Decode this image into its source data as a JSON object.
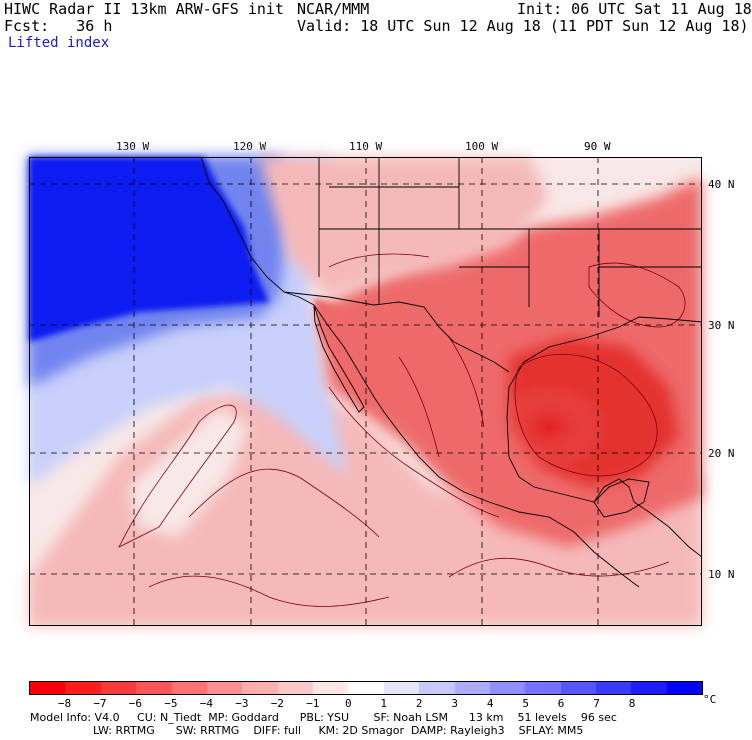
{
  "header": {
    "left_line1": "HIWC Radar II 13km ARW-GFS init",
    "org": "NCAR/MMM",
    "init": "Init: 06 UTC Sat 11 Aug 18",
    "fcst_line": "Fcst:   36 h",
    "valid": "Valid: 18 UTC Sun 12 Aug 18 (11 PDT Sun 12 Aug 18)",
    "field": "Lifted index"
  },
  "map": {
    "lon_labels": [
      "130 W",
      "120 W",
      "110 W",
      "100 W",
      "90 W"
    ],
    "lat_labels": [
      "40 N",
      "30 N",
      "20 N",
      "10 N"
    ],
    "colors": {
      "strong_stable": "#0a1cf0",
      "stable": "#6f83ef",
      "weak_stable": "#c8d0fb",
      "neutral": "#f8e8e8",
      "weak_unstable": "#f6b9b9",
      "unstable": "#ee6b6b",
      "strong_unstable": "#e4302f",
      "contour": "#7a0010",
      "border": "#000000"
    }
  },
  "colorbar": {
    "colors": [
      "#ff0000",
      "#ff1d1d",
      "#ff3a3a",
      "#ff5656",
      "#ff7373",
      "#ff9090",
      "#ffadad",
      "#ffc9c9",
      "#ffe6e6",
      "#ffffff",
      "#e6e6ff",
      "#c9c9ff",
      "#adadff",
      "#9090ff",
      "#7373ff",
      "#5656ff",
      "#3a3aff",
      "#1d1dff",
      "#0000ff"
    ],
    "tick_labels": [
      "−8",
      "−7",
      "−6",
      "−5",
      "−4",
      "−3",
      "−2",
      "−1",
      "0",
      "1",
      "2",
      "3",
      "4",
      "5",
      "6",
      "7",
      "8"
    ],
    "unit": "°C"
  },
  "footer": {
    "line1": "Model Info: V4.0     CU: N_Tiedt  MP: Goddard      PBL: YSU       SF: Noah LSM      13 km    51 levels    96 sec",
    "line2": "                  LW: RRTMG      SW: RRTMG    DIFF: full     KM: 2D Smagor  DAMP: Rayleigh3    SFLAY: MM5"
  }
}
